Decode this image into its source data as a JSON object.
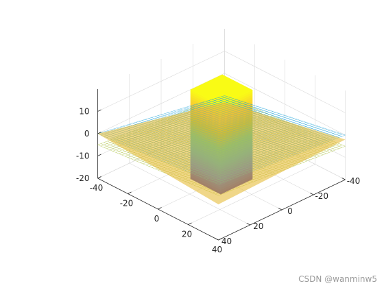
{
  "chart_data": {
    "type": "surface3d",
    "title": "",
    "xlabel": "",
    "ylabel": "",
    "zlabel": "",
    "grid": true,
    "view": "3d-default",
    "xlim": [
      -40,
      40
    ],
    "ylim": [
      -40,
      40
    ],
    "zlim": [
      -20,
      20
    ],
    "xticks": [
      -40,
      -20,
      0,
      20,
      40
    ],
    "yticks": [
      -40,
      -20,
      0,
      20,
      40
    ],
    "zticks": [
      -20,
      -10,
      0,
      10
    ],
    "colormap": [
      "#3e26a8",
      "#2f61f1",
      "#1fa3d8",
      "#2dc4a1",
      "#a5be35",
      "#f8c931",
      "#f9fb15"
    ],
    "surfaces": [
      {
        "kind": "box",
        "x": [
          -10,
          10
        ],
        "y": [
          -10,
          10
        ],
        "z": [
          -20,
          20
        ],
        "style": "colormap-by-z"
      },
      {
        "kind": "mesh-plane",
        "corners": [
          [
            -40,
            40,
            -5
          ],
          [
            40,
            40,
            0
          ],
          [
            40,
            -40,
            -5
          ],
          [
            -40,
            -40,
            -10
          ]
        ],
        "color": "#a5be35"
      },
      {
        "kind": "mesh-plane",
        "corners": [
          [
            -40,
            40,
            0
          ],
          [
            40,
            40,
            5
          ],
          [
            40,
            -40,
            0
          ],
          [
            -40,
            -40,
            -10
          ]
        ],
        "color": "#1fa3d8"
      },
      {
        "kind": "face-plane",
        "corners": [
          [
            -40,
            40,
            0
          ],
          [
            40,
            40,
            -4
          ],
          [
            40,
            -40,
            -2
          ],
          [
            -40,
            -40,
            -13
          ]
        ],
        "color": "#e6bc3a"
      }
    ]
  },
  "watermark": "CSDN @wanminw5"
}
